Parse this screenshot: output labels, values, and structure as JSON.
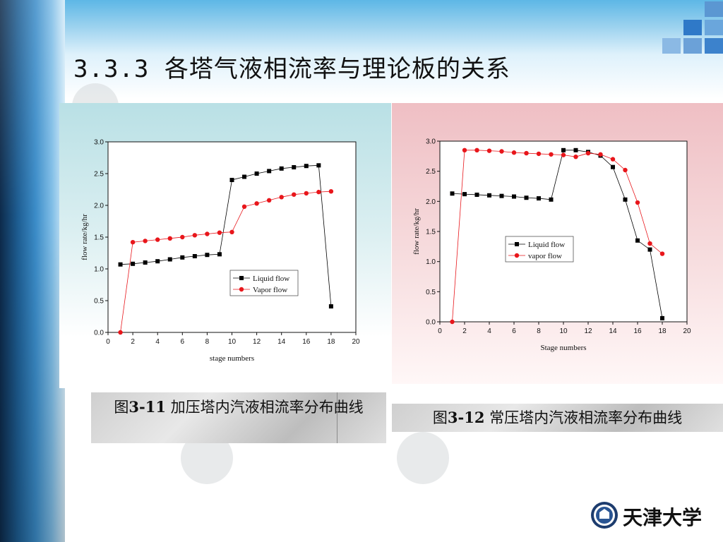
{
  "slide": {
    "title": "3.3.3 各塔气液相流率与理论板的关系",
    "university": "天津大学"
  },
  "captions": [
    {
      "prefix": "图",
      "number": "3-11",
      "text": " 加压塔内汽液相流率分布曲线"
    },
    {
      "prefix": "图",
      "number": "3-12",
      "text": " 常压塔内汽液相流率分布曲线"
    }
  ],
  "colors": {
    "liquid": "#000000",
    "vapor": "#e8161b",
    "panel1": "#b9e0e5",
    "panel2": "#efbfc4"
  },
  "chart_data": [
    {
      "type": "line",
      "xlabel": "stage numbers",
      "ylabel": "flow rate/kg/hr",
      "xlim": [
        0,
        20
      ],
      "ylim": [
        0,
        3.0
      ],
      "xticks": [
        "0",
        "2",
        "4",
        "6",
        "8",
        "10",
        "12",
        "14",
        "16",
        "18",
        "20"
      ],
      "yticks": [
        "0.0",
        "0.5",
        "1.0",
        "1.5",
        "2.0",
        "2.5",
        "3.0"
      ],
      "legend_position": "lower-right",
      "grid": false,
      "series": [
        {
          "name": "Liquid flow",
          "marker": "square",
          "color": "#000000",
          "x": [
            1,
            2,
            3,
            4,
            5,
            6,
            7,
            8,
            9,
            10,
            11,
            12,
            13,
            14,
            15,
            16,
            17,
            18
          ],
          "y": [
            1.07,
            1.08,
            1.1,
            1.12,
            1.15,
            1.18,
            1.2,
            1.22,
            1.23,
            2.4,
            2.45,
            2.5,
            2.54,
            2.58,
            2.6,
            2.62,
            2.63,
            0.41
          ]
        },
        {
          "name": "Vapor flow",
          "marker": "circle",
          "color": "#e8161b",
          "x": [
            1,
            2,
            3,
            4,
            5,
            6,
            7,
            8,
            9,
            10,
            11,
            12,
            13,
            14,
            15,
            16,
            17,
            18
          ],
          "y": [
            0.0,
            1.42,
            1.44,
            1.46,
            1.48,
            1.5,
            1.53,
            1.55,
            1.57,
            1.58,
            1.98,
            2.03,
            2.08,
            2.13,
            2.17,
            2.19,
            2.21,
            2.22
          ]
        }
      ]
    },
    {
      "type": "line",
      "xlabel": "Stage numbers",
      "ylabel": "flow rate/kg/hr",
      "xlim": [
        0,
        20
      ],
      "ylim": [
        0,
        3.0
      ],
      "xticks": [
        "0",
        "2",
        "4",
        "6",
        "8",
        "10",
        "12",
        "14",
        "16",
        "18",
        "20"
      ],
      "yticks": [
        "0.0",
        "0.5",
        "1.0",
        "1.5",
        "2.0",
        "2.5",
        "3.0"
      ],
      "legend_position": "center-right",
      "grid": false,
      "series": [
        {
          "name": "Liquid flow",
          "marker": "square",
          "color": "#000000",
          "x": [
            1,
            2,
            3,
            4,
            5,
            6,
            7,
            8,
            9,
            10,
            11,
            12,
            13,
            14,
            15,
            16,
            17,
            18
          ],
          "y": [
            2.13,
            2.12,
            2.11,
            2.1,
            2.09,
            2.08,
            2.06,
            2.05,
            2.03,
            2.85,
            2.85,
            2.82,
            2.76,
            2.57,
            2.03,
            1.35,
            1.2,
            0.06
          ]
        },
        {
          "name": "vapor flow",
          "marker": "circle",
          "color": "#e8161b",
          "x": [
            1,
            2,
            3,
            4,
            5,
            6,
            7,
            8,
            9,
            10,
            11,
            12,
            13,
            14,
            15,
            16,
            17,
            18
          ],
          "y": [
            0.0,
            2.85,
            2.85,
            2.84,
            2.83,
            2.81,
            2.8,
            2.79,
            2.78,
            2.77,
            2.74,
            2.8,
            2.78,
            2.7,
            2.52,
            1.98,
            1.3,
            1.13
          ]
        }
      ]
    }
  ]
}
